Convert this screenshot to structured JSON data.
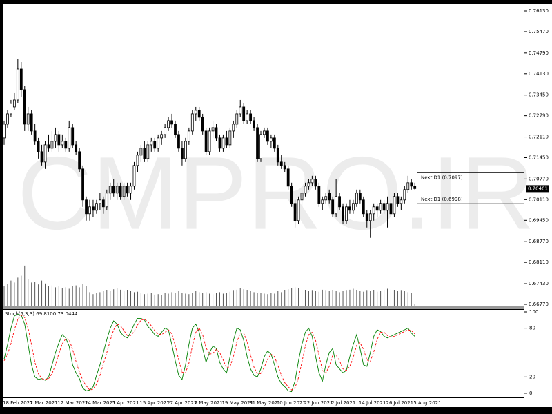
{
  "chart_data": {
    "type": "candlestick",
    "categories": [
      "18 Feb 2021",
      null,
      null,
      null,
      null,
      null,
      null,
      null,
      "2 Mar 2021",
      null,
      null,
      null,
      null,
      null,
      null,
      null,
      "12 Mar 2021",
      null,
      null,
      null,
      null,
      null,
      null,
      null,
      "24 Mar 2021",
      null,
      null,
      null,
      null,
      null,
      null,
      null,
      "5 Apr 2021",
      null,
      null,
      null,
      null,
      null,
      null,
      null,
      "15 Apr 2021",
      null,
      null,
      null,
      null,
      null,
      null,
      null,
      "27 Apr 2021",
      null,
      null,
      null,
      null,
      null,
      null,
      null,
      "7 May 2021",
      null,
      null,
      null,
      null,
      null,
      null,
      null,
      "19 May 2021",
      null,
      null,
      null,
      null,
      null,
      null,
      null,
      "31 May 2021",
      null,
      null,
      null,
      null,
      null,
      null,
      null,
      "10 Jun 2021",
      null,
      null,
      null,
      null,
      null,
      null,
      null,
      "22 Jun 2021",
      null,
      null,
      null,
      null,
      null,
      null,
      null,
      "2 Jul 2021",
      null,
      null,
      null,
      null,
      null,
      null,
      null,
      "14 Jul 2021",
      null,
      null,
      null,
      null,
      null,
      null,
      null,
      "26 Jul 2021",
      null,
      null,
      null,
      null,
      null,
      null,
      null,
      "5 Aug 2021"
    ],
    "ohlc": [
      [
        0.7208,
        0.7263,
        0.7186,
        0.7252
      ],
      [
        0.7252,
        0.7296,
        0.7241,
        0.7285
      ],
      [
        0.7285,
        0.7329,
        0.7274,
        0.7318
      ],
      [
        0.7307,
        0.7351,
        0.7296,
        0.7329
      ],
      [
        0.7329,
        0.7461,
        0.7318,
        0.7428
      ],
      [
        0.7428,
        0.745,
        0.734,
        0.7362
      ],
      [
        0.7362,
        0.7373,
        0.723,
        0.7252
      ],
      [
        0.7252,
        0.7307,
        0.723,
        0.7285
      ],
      [
        0.7285,
        0.7296,
        0.7219,
        0.723
      ],
      [
        0.723,
        0.7252,
        0.7186,
        0.7197
      ],
      [
        0.7197,
        0.7208,
        0.7142,
        0.7164
      ],
      [
        0.7164,
        0.7186,
        0.712,
        0.7131
      ],
      [
        0.7131,
        0.7197,
        0.7109,
        0.7186
      ],
      [
        0.7186,
        0.7219,
        0.7164,
        0.7175
      ],
      [
        0.7175,
        0.723,
        0.7164,
        0.7197
      ],
      [
        0.7197,
        0.7241,
        0.7175,
        0.7219
      ],
      [
        0.7219,
        0.723,
        0.7164,
        0.7186
      ],
      [
        0.7186,
        0.7219,
        0.7175,
        0.7197
      ],
      [
        0.7197,
        0.7208,
        0.7164,
        0.7175
      ],
      [
        0.7175,
        0.7263,
        0.7164,
        0.7241
      ],
      [
        0.7241,
        0.7252,
        0.7175,
        0.7186
      ],
      [
        0.7186,
        0.7197,
        0.7153,
        0.7164
      ],
      [
        0.7164,
        0.7175,
        0.7098,
        0.7109
      ],
      [
        0.7109,
        0.712,
        0.6988,
        0.701
      ],
      [
        0.701,
        0.7021,
        0.6944,
        0.6966
      ],
      [
        0.6966,
        0.701,
        0.6944,
        0.6988
      ],
      [
        0.6988,
        0.701,
        0.6955,
        0.6977
      ],
      [
        0.6977,
        0.701,
        0.6966,
        0.6999
      ],
      [
        0.6999,
        0.7032,
        0.6977,
        0.701
      ],
      [
        0.701,
        0.7021,
        0.6966,
        0.6988
      ],
      [
        0.6988,
        0.7043,
        0.6977,
        0.7032
      ],
      [
        0.7032,
        0.7065,
        0.701,
        0.7054
      ],
      [
        0.7054,
        0.7076,
        0.7021,
        0.7032
      ],
      [
        0.7032,
        0.7065,
        0.701,
        0.7054
      ],
      [
        0.7054,
        0.7065,
        0.701,
        0.7021
      ],
      [
        0.7021,
        0.7065,
        0.701,
        0.7054
      ],
      [
        0.7054,
        0.7065,
        0.7021,
        0.7032
      ],
      [
        0.7032,
        0.7065,
        0.701,
        0.7054
      ],
      [
        0.7054,
        0.7131,
        0.7043,
        0.712
      ],
      [
        0.712,
        0.7164,
        0.7098,
        0.7153
      ],
      [
        0.7153,
        0.7186,
        0.7131,
        0.7175
      ],
      [
        0.7175,
        0.7197,
        0.7131,
        0.7142
      ],
      [
        0.7142,
        0.7197,
        0.7131,
        0.7186
      ],
      [
        0.7186,
        0.7208,
        0.7164,
        0.7197
      ],
      [
        0.7197,
        0.7208,
        0.7164,
        0.7175
      ],
      [
        0.7175,
        0.7219,
        0.7164,
        0.7208
      ],
      [
        0.7208,
        0.723,
        0.7186,
        0.7219
      ],
      [
        0.7219,
        0.7252,
        0.7208,
        0.7241
      ],
      [
        0.7241,
        0.7274,
        0.723,
        0.7263
      ],
      [
        0.7263,
        0.7285,
        0.7241,
        0.7252
      ],
      [
        0.7252,
        0.7263,
        0.7208,
        0.7219
      ],
      [
        0.7219,
        0.723,
        0.7164,
        0.7175
      ],
      [
        0.7175,
        0.7197,
        0.712,
        0.7142
      ],
      [
        0.7142,
        0.7208,
        0.7131,
        0.7197
      ],
      [
        0.7197,
        0.7241,
        0.7186,
        0.723
      ],
      [
        0.723,
        0.7296,
        0.7219,
        0.7285
      ],
      [
        0.7285,
        0.7307,
        0.7263,
        0.7296
      ],
      [
        0.7296,
        0.7307,
        0.7263,
        0.7274
      ],
      [
        0.7274,
        0.7285,
        0.7219,
        0.723
      ],
      [
        0.723,
        0.7241,
        0.7153,
        0.7164
      ],
      [
        0.7164,
        0.7241,
        0.7153,
        0.723
      ],
      [
        0.723,
        0.7263,
        0.7208,
        0.7241
      ],
      [
        0.7241,
        0.7252,
        0.7197,
        0.7208
      ],
      [
        0.7208,
        0.7219,
        0.7164,
        0.7175
      ],
      [
        0.7175,
        0.7219,
        0.7164,
        0.7208
      ],
      [
        0.7208,
        0.723,
        0.7175,
        0.7186
      ],
      [
        0.7186,
        0.7241,
        0.7175,
        0.723
      ],
      [
        0.723,
        0.7263,
        0.7208,
        0.7252
      ],
      [
        0.7252,
        0.7296,
        0.7241,
        0.7285
      ],
      [
        0.7285,
        0.7329,
        0.7274,
        0.7307
      ],
      [
        0.7307,
        0.7318,
        0.7252,
        0.7263
      ],
      [
        0.7263,
        0.7296,
        0.7252,
        0.7285
      ],
      [
        0.7285,
        0.7296,
        0.7252,
        0.7263
      ],
      [
        0.7263,
        0.7274,
        0.723,
        0.7241
      ],
      [
        0.7241,
        0.7252,
        0.7131,
        0.7142
      ],
      [
        0.7142,
        0.723,
        0.7131,
        0.7219
      ],
      [
        0.7219,
        0.7241,
        0.7208,
        0.723
      ],
      [
        0.723,
        0.7241,
        0.7186,
        0.7197
      ],
      [
        0.7197,
        0.7219,
        0.7175,
        0.7208
      ],
      [
        0.7208,
        0.7219,
        0.7164,
        0.7175
      ],
      [
        0.7175,
        0.7186,
        0.712,
        0.7131
      ],
      [
        0.7131,
        0.7153,
        0.7109,
        0.712
      ],
      [
        0.712,
        0.7131,
        0.7098,
        0.7109
      ],
      [
        0.7109,
        0.712,
        0.7043,
        0.7054
      ],
      [
        0.7054,
        0.7065,
        0.6988,
        0.6999
      ],
      [
        0.6999,
        0.701,
        0.6922,
        0.6944
      ],
      [
        0.6944,
        0.7021,
        0.6933,
        0.701
      ],
      [
        0.701,
        0.7043,
        0.6988,
        0.7032
      ],
      [
        0.7032,
        0.7065,
        0.7021,
        0.7054
      ],
      [
        0.7054,
        0.7076,
        0.7043,
        0.7065
      ],
      [
        0.7065,
        0.7087,
        0.7054,
        0.7076
      ],
      [
        0.7076,
        0.7087,
        0.7043,
        0.7054
      ],
      [
        0.7054,
        0.7065,
        0.6988,
        0.6999
      ],
      [
        0.6999,
        0.7021,
        0.6977,
        0.701
      ],
      [
        0.701,
        0.7032,
        0.6999,
        0.7021
      ],
      [
        0.7032,
        0.7043,
        0.6999,
        0.701
      ],
      [
        0.701,
        0.7021,
        0.6955,
        0.6966
      ],
      [
        0.6966,
        0.7076,
        0.6955,
        0.7021
      ],
      [
        0.7021,
        0.7032,
        0.6977,
        0.6988
      ],
      [
        0.6988,
        0.6999,
        0.6933,
        0.6944
      ],
      [
        0.6944,
        0.6999,
        0.6933,
        0.6988
      ],
      [
        0.6988,
        0.701,
        0.6966,
        0.6977
      ],
      [
        0.6977,
        0.701,
        0.6966,
        0.6999
      ],
      [
        0.6999,
        0.7043,
        0.6988,
        0.7032
      ],
      [
        0.7032,
        0.7043,
        0.6999,
        0.701
      ],
      [
        0.701,
        0.7021,
        0.6955,
        0.6966
      ],
      [
        0.6966,
        0.6977,
        0.6922,
        0.6944
      ],
      [
        0.6944,
        0.6977,
        0.6889,
        0.6966
      ],
      [
        0.6966,
        0.6999,
        0.6944,
        0.6988
      ],
      [
        0.6988,
        0.6999,
        0.6955,
        0.6977
      ],
      [
        0.6977,
        0.701,
        0.6966,
        0.6999
      ],
      [
        0.6999,
        0.701,
        0.6966,
        0.6977
      ],
      [
        0.6977,
        0.7021,
        0.6922,
        0.6999
      ],
      [
        0.6999,
        0.701,
        0.6955,
        0.6966
      ],
      [
        0.6966,
        0.7032,
        0.6955,
        0.7021
      ],
      [
        0.7021,
        0.7032,
        0.6988,
        0.6999
      ],
      [
        0.6999,
        0.7021,
        0.6977,
        0.701
      ],
      [
        0.701,
        0.7054,
        0.6999,
        0.7043
      ],
      [
        0.7043,
        0.7087,
        0.7032,
        0.7065
      ],
      [
        0.7065,
        0.7076,
        0.7043,
        0.7054
      ],
      [
        0.7054,
        0.7065,
        0.7043,
        0.70461
      ]
    ],
    "ylim": [
      0.66726,
      0.76306
    ],
    "yticks": [
      {
        "value": 0.7613,
        "label": "0.76130"
      },
      {
        "value": 0.7547,
        "label": "0.75470"
      },
      {
        "value": 0.7479,
        "label": "0.74790"
      },
      {
        "value": 0.7413,
        "label": "0.74130"
      },
      {
        "value": 0.7345,
        "label": "0.73450"
      },
      {
        "value": 0.7279,
        "label": "0.72790"
      },
      {
        "value": 0.7211,
        "label": "0.72110"
      },
      {
        "value": 0.7145,
        "label": "0.71450"
      },
      {
        "value": 0.7077,
        "label": "0.70770"
      },
      {
        "value": 0.7011,
        "label": "0.70110"
      },
      {
        "value": 0.6945,
        "label": "0.69450"
      },
      {
        "value": 0.6877,
        "label": "0.68770"
      },
      {
        "value": 0.6811,
        "label": "0.68110"
      },
      {
        "value": 0.6743,
        "label": "0.67430"
      },
      {
        "value": 0.6677,
        "label": "0.66770"
      }
    ],
    "current_price": 0.70461,
    "pivot_lines": [
      {
        "value": 0.7097,
        "label": "Next D1 (0.7097)"
      },
      {
        "value": 0.6998,
        "label": "Next D1 (0.6998)"
      }
    ],
    "up_color": "#ffffff",
    "down_color": "#000000",
    "watermark": "CMPRO.IR",
    "volume": {
      "color": "#555555",
      "ylim": [
        0,
        100
      ],
      "values": [
        40,
        45,
        52,
        48,
        58,
        62,
        83,
        55,
        48,
        50,
        44,
        52,
        46,
        40,
        42,
        38,
        40,
        36,
        38,
        35,
        40,
        42,
        38,
        45,
        40,
        28,
        24,
        26,
        28,
        30,
        32,
        30,
        34,
        36,
        33,
        30,
        32,
        30,
        28,
        29,
        26,
        24,
        25,
        26,
        23,
        24,
        22,
        26,
        25,
        28,
        27,
        30,
        26,
        25,
        24,
        27,
        30,
        28,
        26,
        28,
        25,
        24,
        26,
        28,
        25,
        27,
        29,
        31,
        33,
        36,
        34,
        32,
        30,
        28,
        27,
        26,
        25,
        24,
        26,
        25,
        30,
        28,
        32,
        34,
        36,
        38,
        36,
        33,
        32,
        30,
        31,
        30,
        29,
        33,
        31,
        30,
        32,
        30,
        28,
        30,
        31,
        33,
        35,
        32,
        30,
        29,
        31,
        30,
        32,
        29,
        30,
        33,
        35,
        34,
        32,
        30,
        31,
        30,
        28,
        26,
        4
      ]
    },
    "stochastic": {
      "label": "Stoch(5,3,3) 69.8100 73.0444",
      "ylim": [
        -6,
        103.4
      ],
      "yticks": [
        100,
        80,
        20,
        0
      ],
      "levels": [
        80,
        20
      ],
      "series": [
        {
          "color": "#008000",
          "values": [
            42,
            60,
            80,
            95,
            97,
            96,
            85,
            60,
            35,
            20,
            17,
            18,
            16,
            20,
            35,
            50,
            62,
            72,
            68,
            58,
            35,
            25,
            18,
            6,
            3,
            4,
            8,
            22,
            35,
            50,
            66,
            80,
            89,
            85,
            75,
            70,
            68,
            75,
            85,
            92,
            92,
            90,
            82,
            78,
            72,
            70,
            75,
            80,
            78,
            60,
            40,
            22,
            17,
            35,
            60,
            80,
            85,
            75,
            55,
            38,
            50,
            58,
            55,
            38,
            30,
            25,
            45,
            65,
            80,
            78,
            65,
            45,
            30,
            22,
            20,
            30,
            45,
            52,
            48,
            35,
            20,
            12,
            8,
            3,
            2,
            15,
            40,
            60,
            75,
            80,
            70,
            45,
            25,
            15,
            35,
            50,
            55,
            35,
            30,
            25,
            28,
            45,
            60,
            72,
            55,
            35,
            33,
            50,
            70,
            78,
            76,
            70,
            68,
            70,
            72,
            74,
            76,
            78,
            80,
            74,
            69.81
          ]
        },
        {
          "color": "#ff0000",
          "dashed": true,
          "values": [
            40,
            48,
            61,
            78,
            91,
            96,
            93,
            80,
            60,
            38,
            24,
            18,
            17,
            18,
            24,
            35,
            49,
            61,
            67,
            66,
            54,
            39,
            26,
            16,
            9,
            4,
            5,
            11,
            22,
            36,
            50,
            65,
            78,
            85,
            83,
            77,
            71,
            71,
            76,
            84,
            90,
            91,
            88,
            83,
            77,
            73,
            72,
            75,
            78,
            73,
            59,
            41,
            26,
            25,
            37,
            58,
            75,
            80,
            72,
            56,
            48,
            49,
            54,
            50,
            41,
            31,
            33,
            45,
            63,
            74,
            74,
            63,
            47,
            32,
            24,
            24,
            32,
            42,
            48,
            45,
            34,
            22,
            13,
            8,
            4,
            7,
            19,
            38,
            58,
            72,
            75,
            65,
            47,
            28,
            25,
            33,
            47,
            47,
            40,
            30,
            28,
            33,
            44,
            59,
            62,
            54,
            41,
            39,
            51,
            66,
            75,
            75,
            71,
            69,
            70,
            72,
            74,
            76,
            78,
            77,
            73.0444
          ]
        }
      ]
    }
  }
}
